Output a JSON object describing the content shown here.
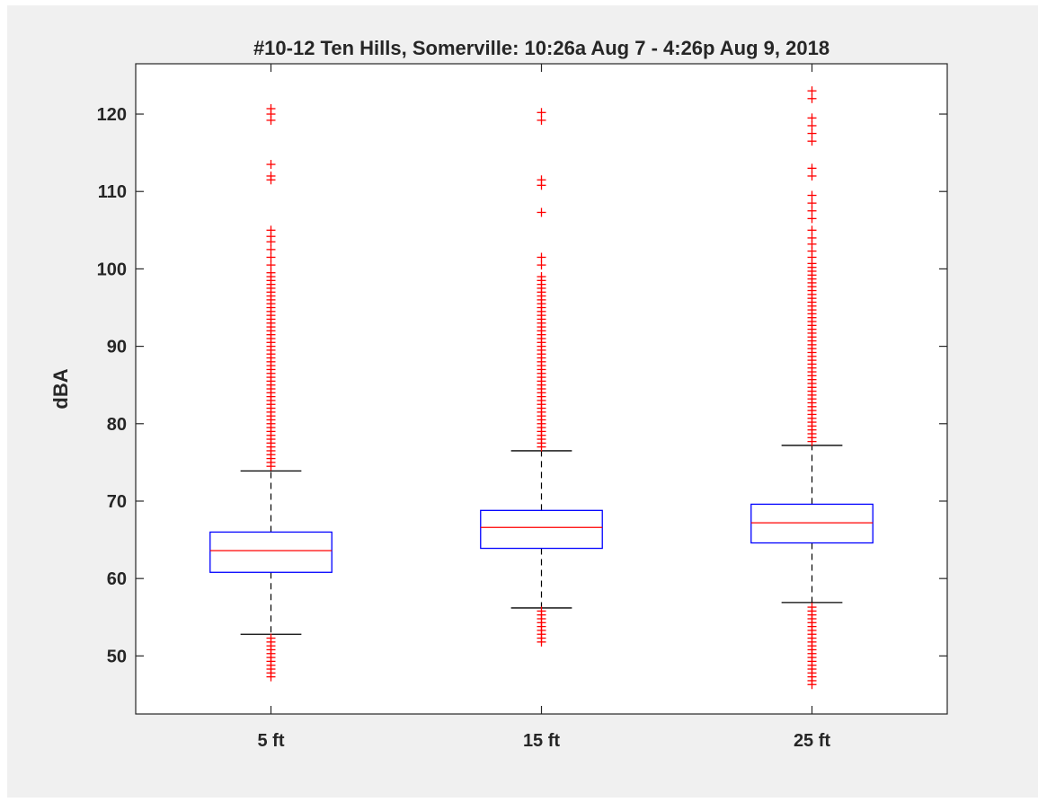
{
  "chart_data": {
    "type": "box",
    "title": "#10-12 Ten Hills, Somerville: 10:26a Aug 7 - 4:26p Aug 9, 2018",
    "xlabel": "",
    "ylabel": "dBA",
    "ylim": [
      42.5,
      126.5
    ],
    "yticks": [
      50,
      60,
      70,
      80,
      90,
      100,
      110,
      120
    ],
    "grid": false,
    "colors": {
      "box": "#0000ff",
      "median": "#ff0000",
      "whisker": "#000000",
      "outlier": "#ff0000",
      "axes": "#262626",
      "background": "#f0f0f0",
      "plot_area": "#ffffff"
    },
    "categories": [
      "5 ft",
      "15 ft",
      "25 ft"
    ],
    "boxes": [
      {
        "category": "5 ft",
        "whisker_low": 52.8,
        "q1": 60.8,
        "median": 63.6,
        "q3": 66.0,
        "whisker_high": 73.9,
        "outliers_high": [
          74.5,
          75,
          75.5,
          76,
          76.5,
          77,
          77.5,
          78,
          78.5,
          79,
          79.5,
          80,
          80.5,
          81,
          81.5,
          82,
          82.5,
          83,
          83.5,
          84,
          84.5,
          85,
          85.5,
          86,
          86.5,
          87,
          87.5,
          88,
          88.5,
          89,
          89.5,
          90,
          90.5,
          91,
          91.5,
          92,
          92.5,
          93,
          93.5,
          94,
          94.5,
          95,
          95.5,
          96,
          96.5,
          97,
          97.5,
          98,
          98.5,
          99,
          99.5,
          100.5,
          101.5,
          102.5,
          103.5,
          104.2,
          105,
          111.5,
          112,
          113.5,
          119.2,
          120,
          120.7
        ],
        "outliers_low": [
          47.3,
          47.8,
          48.3,
          48.8,
          49.3,
          49.8,
          50.3,
          50.8,
          51.3,
          51.8,
          52.3
        ]
      },
      {
        "category": "15 ft",
        "whisker_low": 56.2,
        "q1": 63.9,
        "median": 66.6,
        "q3": 68.8,
        "whisker_high": 76.5,
        "outliers_high": [
          77,
          77.5,
          78,
          78.5,
          79,
          79.5,
          80,
          80.5,
          81,
          81.5,
          82,
          82.5,
          83,
          83.5,
          84,
          84.5,
          85,
          85.5,
          86,
          86.5,
          87,
          87.5,
          88,
          88.5,
          89,
          89.5,
          90,
          90.5,
          91,
          91.5,
          92,
          92.5,
          93,
          93.5,
          94,
          94.5,
          95,
          95.5,
          96,
          96.5,
          97,
          97.5,
          98,
          98.5,
          99,
          100.5,
          101.5,
          107.3,
          110.8,
          111.5,
          119.2,
          120.2
        ],
        "outliers_low": [
          51.8,
          52.3,
          52.8,
          53.3,
          53.8,
          54.3,
          54.8,
          55.3,
          55.8
        ]
      },
      {
        "category": "25 ft",
        "whisker_low": 56.9,
        "q1": 64.6,
        "median": 67.2,
        "q3": 69.6,
        "whisker_high": 77.2,
        "outliers_high": [
          77.7,
          78.2,
          78.7,
          79.2,
          79.7,
          80.2,
          80.7,
          81.2,
          81.7,
          82.2,
          82.7,
          83.2,
          83.7,
          84.2,
          84.7,
          85.2,
          85.7,
          86.2,
          86.7,
          87.2,
          87.7,
          88.2,
          88.7,
          89.2,
          89.7,
          90.2,
          90.7,
          91.2,
          91.7,
          92.2,
          92.7,
          93.2,
          93.7,
          94.2,
          94.7,
          95.2,
          95.7,
          96.2,
          96.7,
          97.2,
          97.7,
          98.2,
          98.7,
          99.2,
          99.7,
          100.2,
          100.7,
          101.5,
          102.3,
          103.2,
          104,
          105,
          106.5,
          107.5,
          108.5,
          109.5,
          112,
          113,
          116.5,
          117.5,
          118.5,
          119.5,
          122,
          123
        ],
        "outliers_low": [
          46.3,
          46.8,
          47.3,
          47.8,
          48.3,
          48.8,
          49.3,
          49.8,
          50.3,
          50.8,
          51.3,
          51.8,
          52.3,
          52.8,
          53.3,
          53.8,
          54.3,
          54.8,
          55.3,
          55.8,
          56.3
        ]
      }
    ]
  }
}
